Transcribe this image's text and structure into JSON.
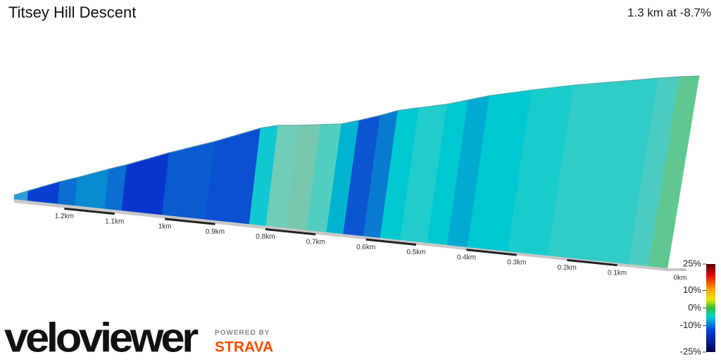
{
  "chart_data": {
    "type": "profile",
    "title": "Titsey Hill Descent",
    "summary": "1.3 km at -8.7%",
    "xticks": [
      {
        "value": 1.2,
        "label": "1.2km"
      },
      {
        "value": 1.1,
        "label": "1.1km"
      },
      {
        "value": 1,
        "label": "1km"
      },
      {
        "value": 0.9,
        "label": "0.9km"
      },
      {
        "value": 0.8,
        "label": "0.8km"
      },
      {
        "value": 0.7,
        "label": "0.7km"
      },
      {
        "value": 0.6,
        "label": "0.6km"
      },
      {
        "value": 0.5,
        "label": "0.5km"
      },
      {
        "value": 0.4,
        "label": "0.4km"
      },
      {
        "value": 0.3,
        "label": "0.3km"
      },
      {
        "value": 0.2,
        "label": "0.2km"
      },
      {
        "value": 0.1,
        "label": "0.1km"
      },
      {
        "value": 0,
        "label": "0km"
      }
    ],
    "xlim": [
      1.3,
      0
    ],
    "colorbar": {
      "lim": [
        -25,
        25
      ],
      "ticks": [
        {
          "value": 25,
          "label": "25%"
        },
        {
          "value": 10,
          "label": "10%"
        },
        {
          "value": 0,
          "label": "0%"
        },
        {
          "value": -10,
          "label": "-10%"
        },
        {
          "value": -25,
          "label": "-25%"
        }
      ]
    },
    "logo": {
      "brand": "veloviewer",
      "powered": "POWERED BY",
      "partner": "STRAVA"
    }
  }
}
